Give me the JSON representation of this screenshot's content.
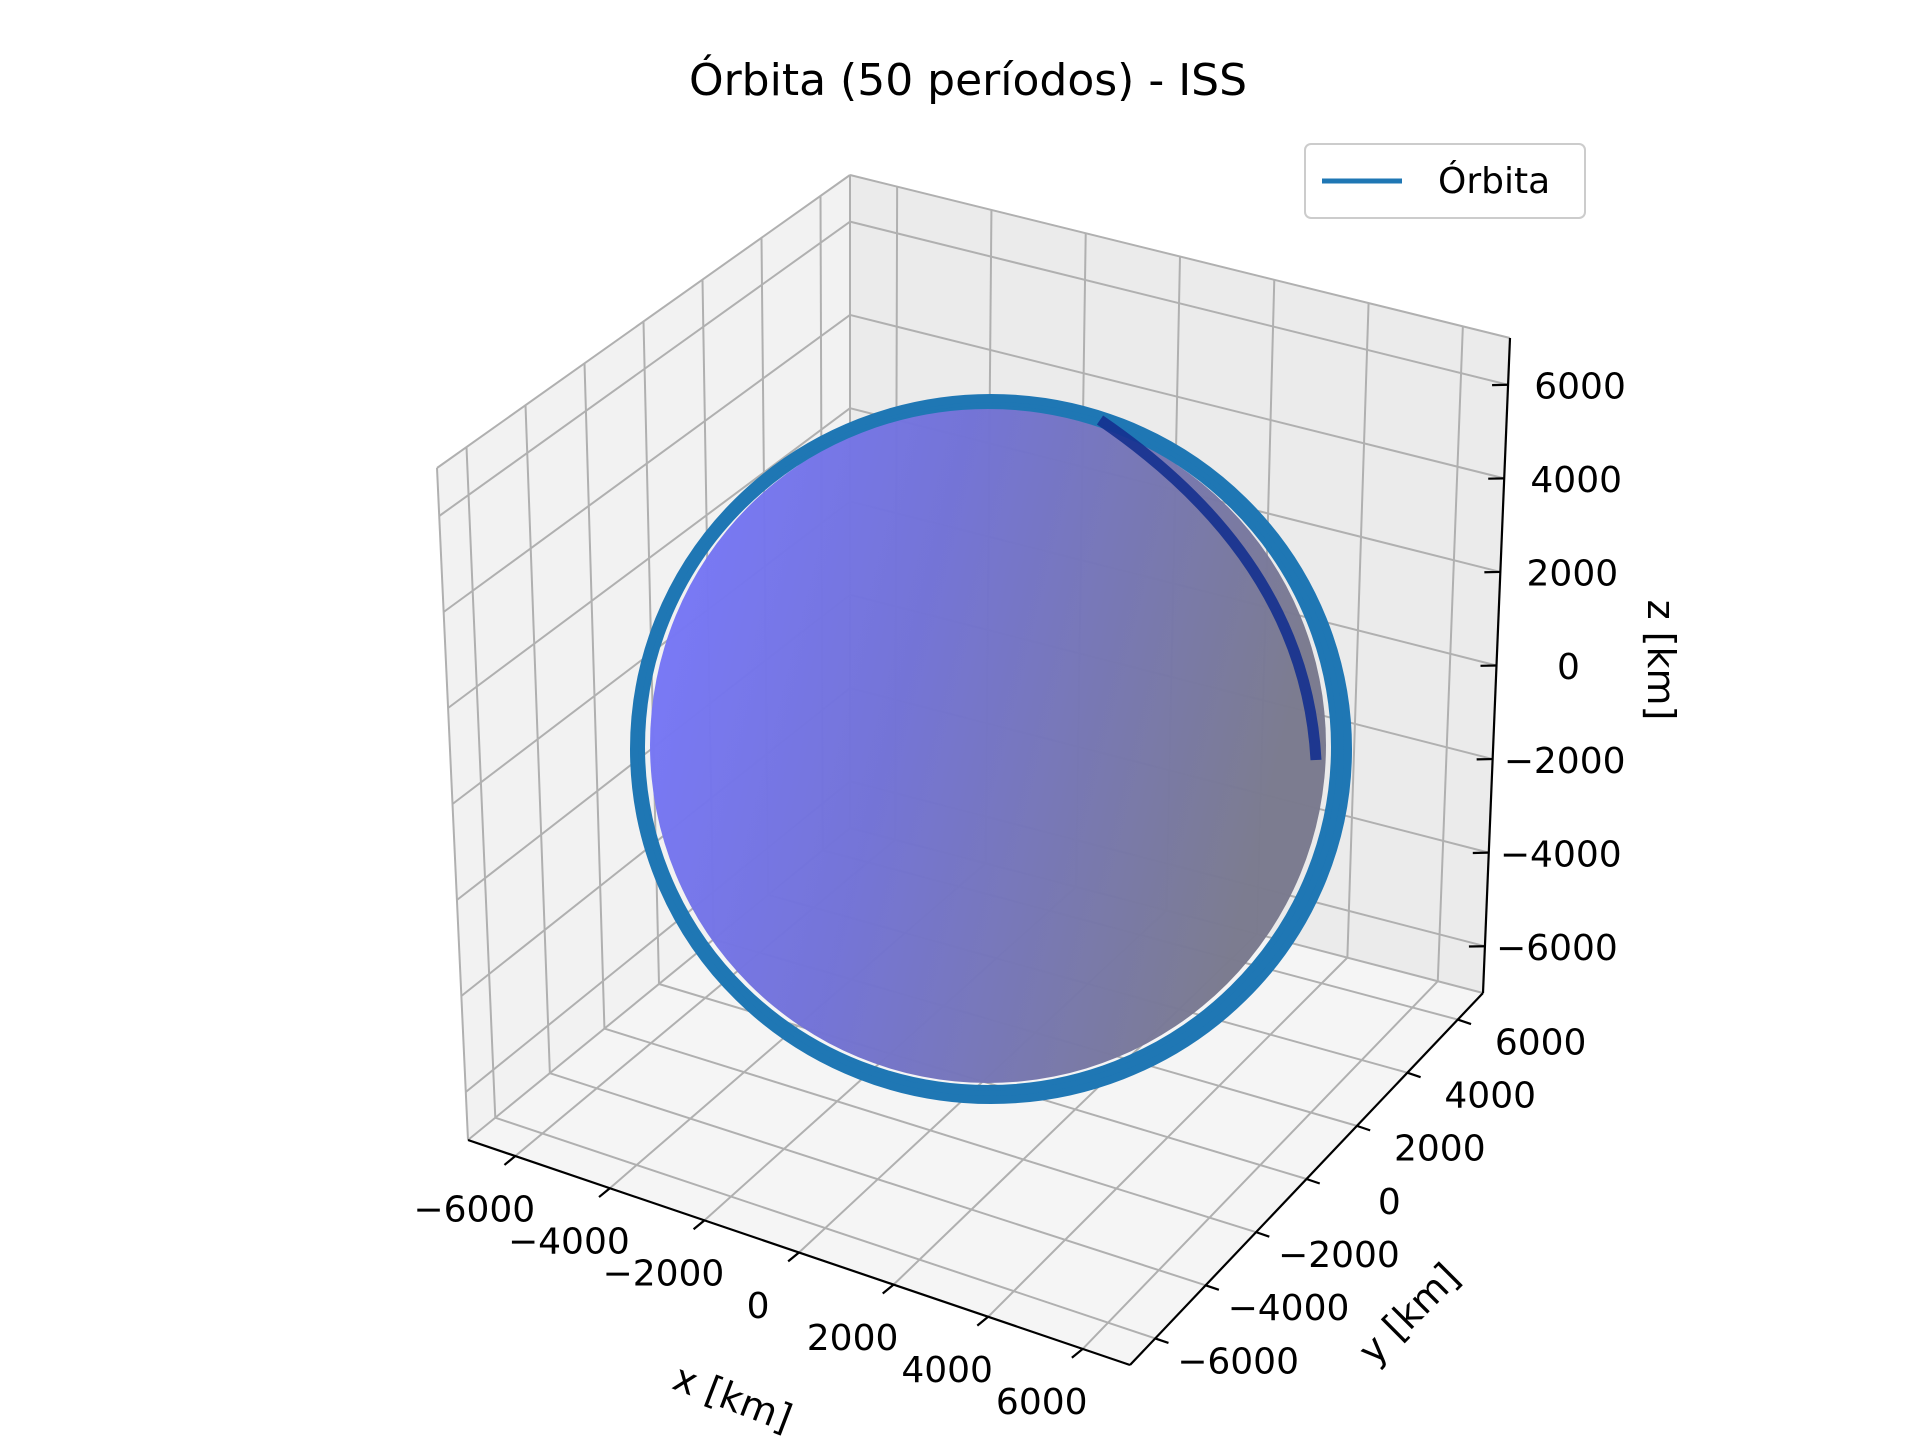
{
  "chart_data": {
    "type": "line",
    "title": "Órbita (50 períodos) - ISS",
    "xlabel": "x [km]",
    "ylabel": "y [km]",
    "zlabel": "z [km]",
    "xlim": [
      -7000,
      7000
    ],
    "ylim": [
      -7000,
      7000
    ],
    "zlim": [
      -7000,
      7000
    ],
    "x_ticks": [
      -6000,
      -4000,
      -2000,
      0,
      2000,
      4000,
      6000
    ],
    "y_ticks": [
      -6000,
      -4000,
      -2000,
      0,
      2000,
      4000,
      6000
    ],
    "z_ticks": [
      -6000,
      -4000,
      -2000,
      0,
      2000,
      4000,
      6000
    ],
    "x_tick_labels": [
      "−6000",
      "−4000",
      "−2000",
      "0",
      "2000",
      "4000",
      "6000"
    ],
    "y_tick_labels": [
      "−6000",
      "−4000",
      "−2000",
      "0",
      "2000",
      "4000",
      "6000"
    ],
    "z_tick_labels": [
      "−6000",
      "−4000",
      "−2000",
      "0",
      "2000",
      "4000",
      "6000"
    ],
    "grid": true,
    "legend_position": "top-right",
    "series": [
      {
        "name": "Órbita",
        "type": "line",
        "color": "#1f77b4",
        "periods": 50,
        "approx_radius_km": 6780
      }
    ],
    "surfaces": [
      {
        "kind": "sphere",
        "approx_radius_km": 6371,
        "color": "#6f6fff",
        "dark_color": "#7a7a8c"
      }
    ]
  }
}
